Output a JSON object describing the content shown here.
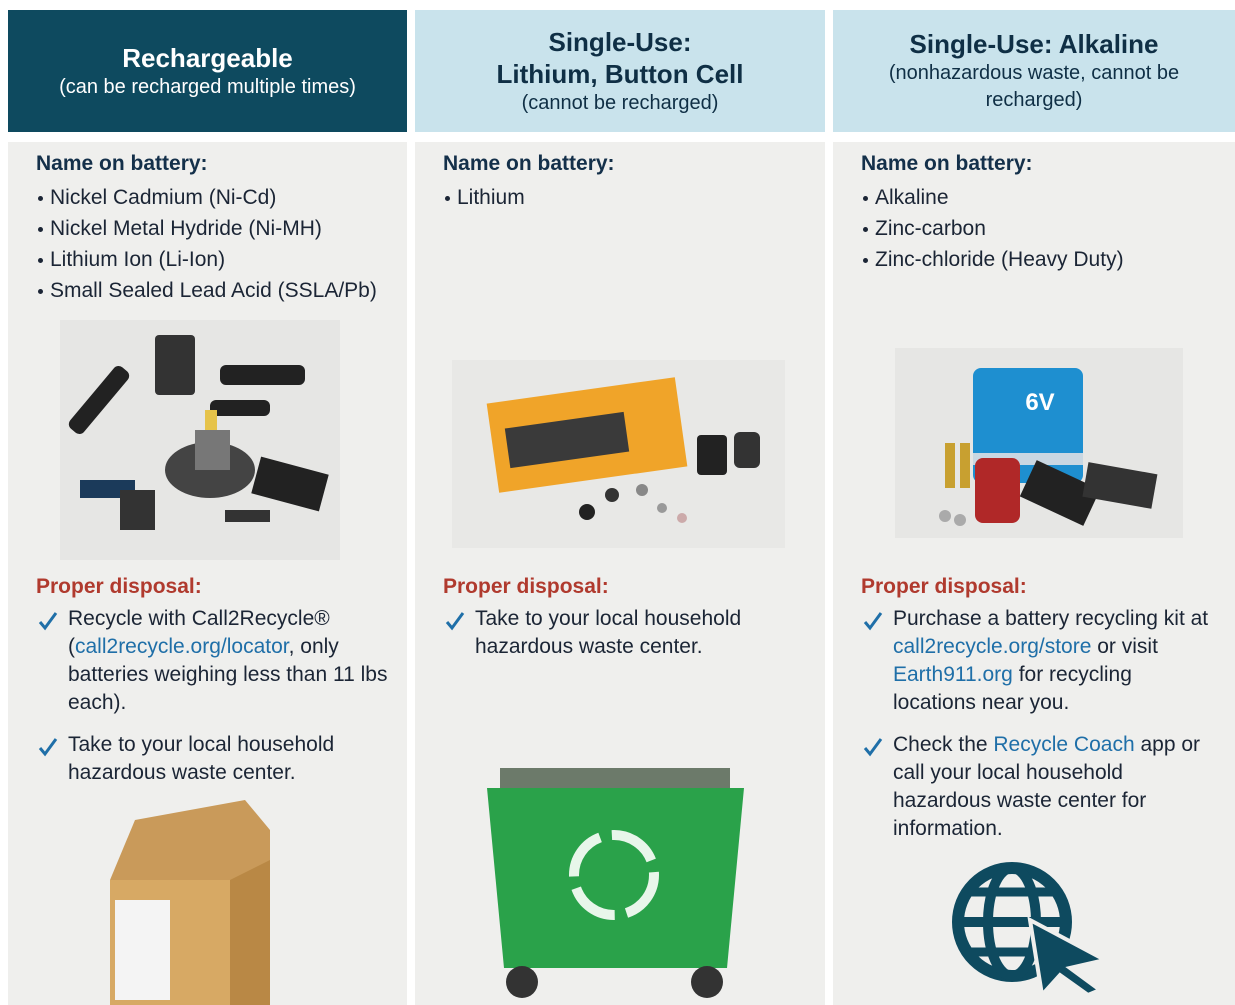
{
  "columns": [
    {
      "header": {
        "title_lines": [
          "Rechargeable"
        ],
        "subtitle": "(can be recharged multiple times)"
      },
      "names_heading": "Name on battery:",
      "names": [
        "Nickel Cadmium (Ni-Cd)",
        "Nickel Metal Hydride (Ni-MH)",
        "Lithium Ion (Li-Ion)",
        "Small Sealed Lead Acid (SSLA/Pb)"
      ],
      "disposal_heading": "Proper disposal:",
      "disposal": [
        [
          {
            "text": "Recycle with Call2Recycle® ("
          },
          {
            "text": "call2recycle.org/locator",
            "link": true
          },
          {
            "text": ", only batteries weighing less than 11 lbs each)."
          }
        ],
        [
          {
            "text": "Take to your local household hazardous waste center."
          }
        ]
      ]
    },
    {
      "header": {
        "title_lines": [
          "Single-Use:",
          "Lithium, Button Cell"
        ],
        "subtitle": "(cannot be recharged)"
      },
      "names_heading": "Name on battery:",
      "names": [
        "Lithium"
      ],
      "disposal_heading": "Proper disposal:",
      "disposal": [
        [
          {
            "text": "Take to your local household hazardous waste center."
          }
        ]
      ]
    },
    {
      "header": {
        "title_lines": [
          "Single-Use: Alkaline"
        ],
        "subtitle": "(nonhazardous waste, cannot be recharged)"
      },
      "names_heading": "Name on battery:",
      "names": [
        "Alkaline",
        "Zinc-carbon",
        "Zinc-chloride (Heavy Duty)"
      ],
      "disposal_heading": "Proper disposal:",
      "disposal": [
        [
          {
            "text": "Purchase a battery recycling kit at "
          },
          {
            "text": "call2recycle.org/store",
            "link": true
          },
          {
            "text": " or visit "
          },
          {
            "text": "Earth911.org",
            "link": true
          },
          {
            "text": " for recycling locations near you."
          }
        ],
        [
          {
            "text": "Check the "
          },
          {
            "text": "Recycle Coach",
            "link": true
          },
          {
            "text": " app or call your local household hazardous waste center for information."
          }
        ]
      ],
      "photo_label": "6V"
    }
  ]
}
